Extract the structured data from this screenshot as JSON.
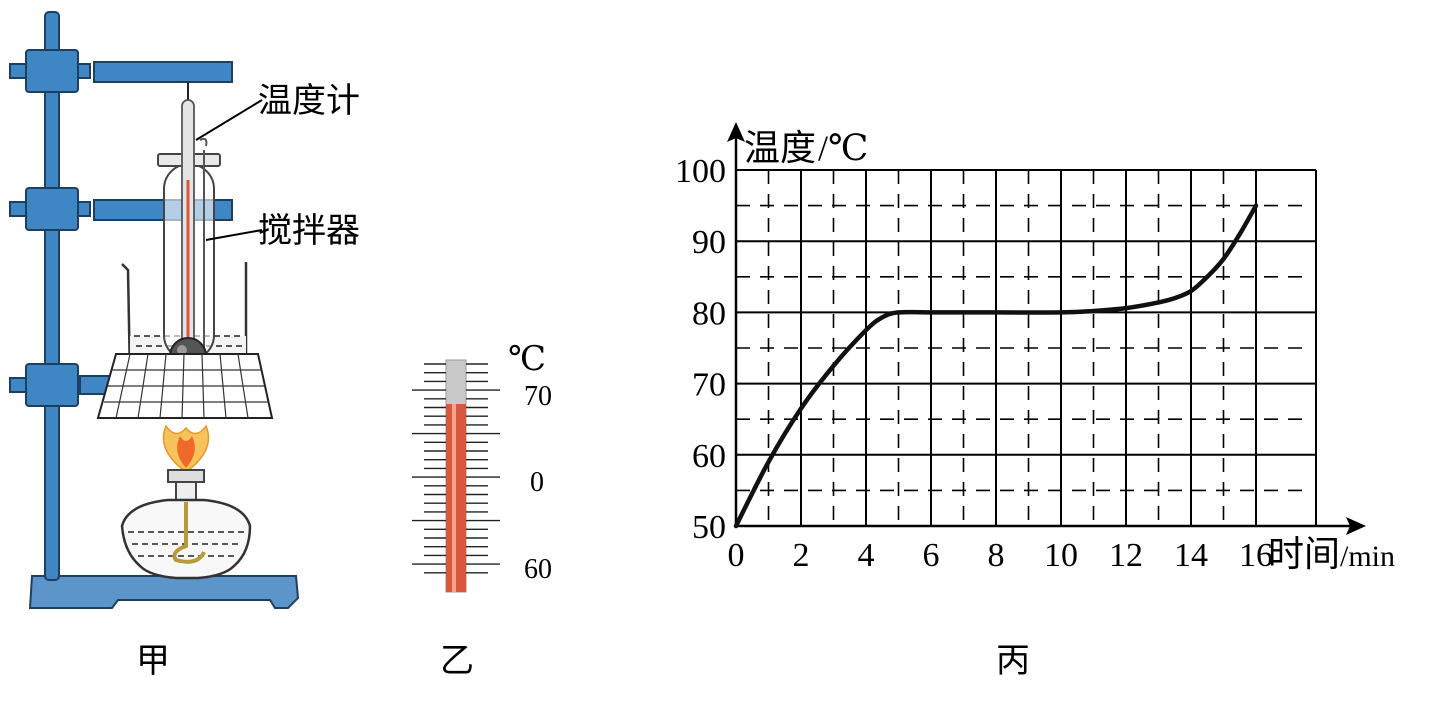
{
  "figure_a": {
    "caption": "甲",
    "labels": {
      "thermometer": "温度计",
      "stirrer": "搅拌器"
    }
  },
  "figure_b": {
    "caption": "乙",
    "unit": "℃",
    "tick_labels": [
      "70",
      "0",
      "60"
    ]
  },
  "figure_c": {
    "caption": "丙"
  },
  "colors": {
    "stand_blue": "#2f7fbf",
    "stand_dark": "#1f5f94",
    "mercury_red": "#d9573f",
    "tube_gray": "#a8a8a8",
    "flame_orange": "#f0a030",
    "grid": "#000000"
  },
  "chart_data": {
    "type": "line",
    "xlabel": "时间",
    "xlabel_unit": "/min",
    "ylabel": "温度",
    "ylabel_unit": "/℃",
    "xlim": [
      0,
      16
    ],
    "ylim": [
      50,
      100
    ],
    "x_ticks": [
      "0",
      "2",
      "4",
      "6",
      "8",
      "10",
      "12",
      "14",
      "16"
    ],
    "y_ticks": [
      "100",
      "90",
      "80",
      "70",
      "60",
      "50"
    ],
    "grid": "solid major every 2 min / 10 ℃, dashed minor every 1 min / 5 ℃",
    "series": [
      {
        "x": [
          0,
          1,
          2,
          3,
          4,
          4.5,
          5,
          6,
          8,
          10,
          11,
          12,
          13,
          13.5,
          14,
          14.5,
          15,
          15.5,
          16
        ],
        "y": [
          50,
          59,
          66.5,
          72.5,
          77.5,
          79.3,
          80,
          80,
          80,
          80,
          80.2,
          80.6,
          81.4,
          82,
          83,
          85,
          87.5,
          91,
          95
        ]
      }
    ]
  }
}
